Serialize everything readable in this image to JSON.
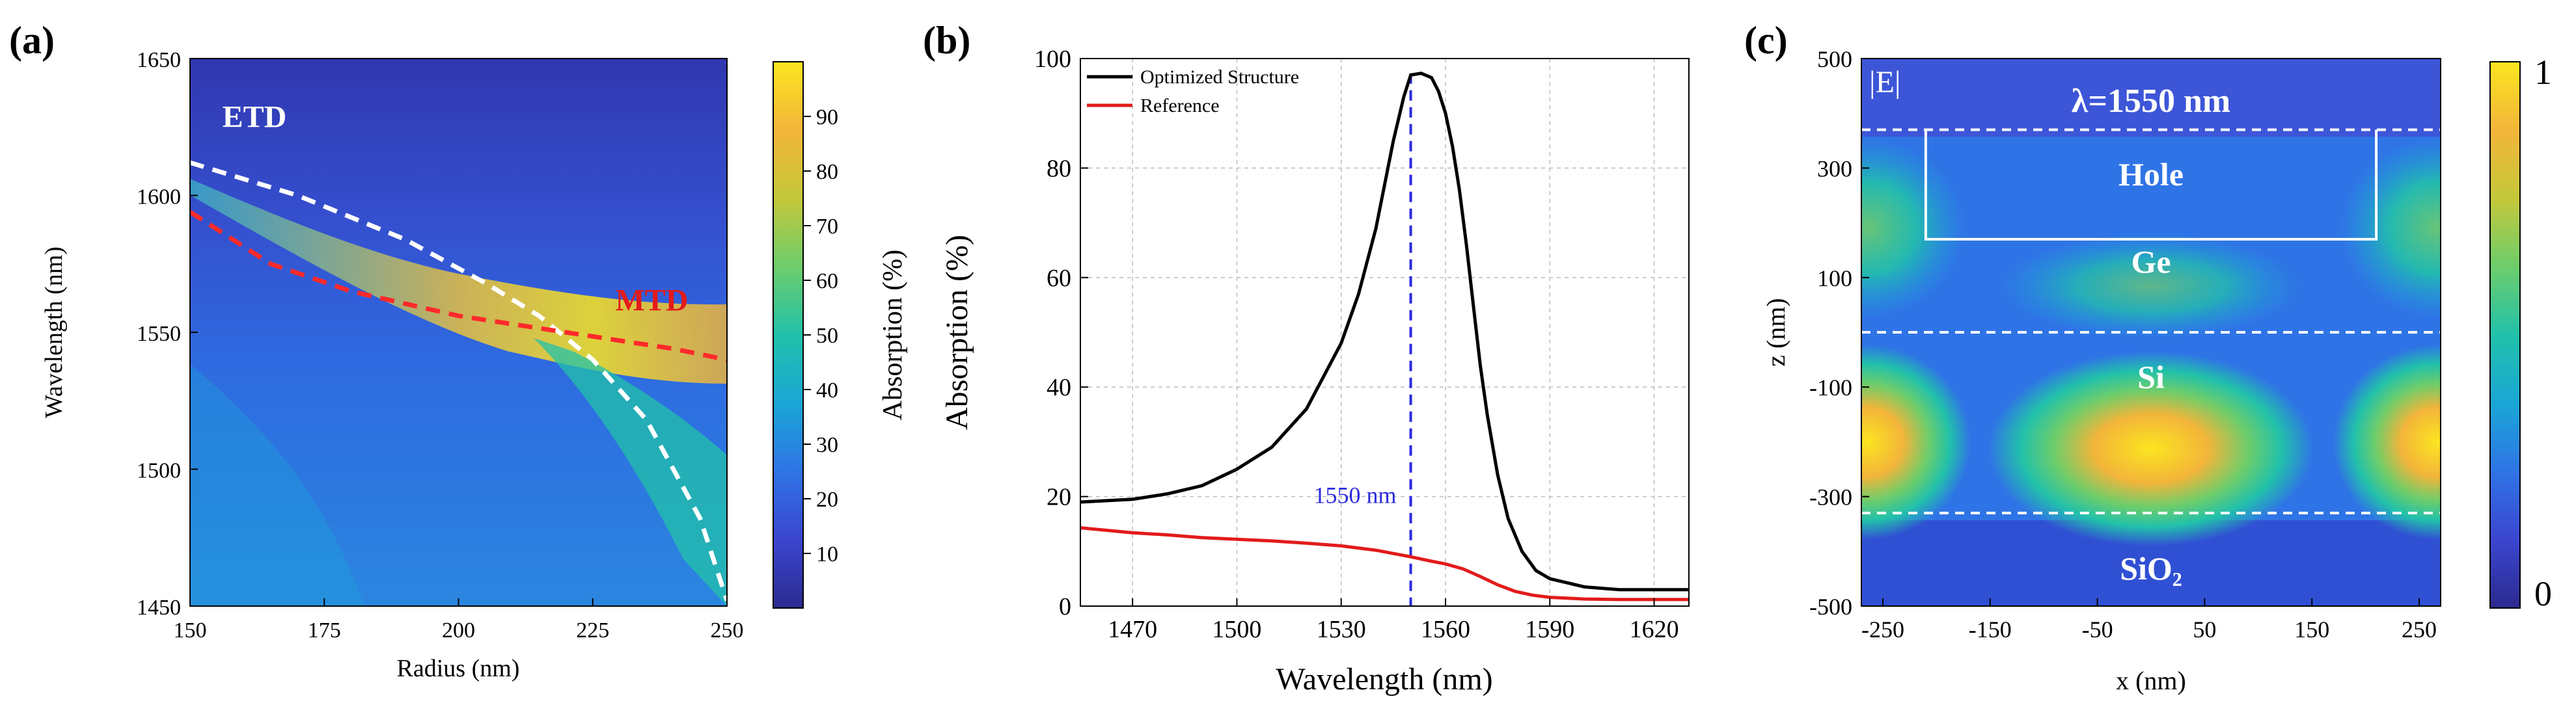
{
  "colors": {
    "cmap": [
      "#2c2a8f",
      "#3b46cf",
      "#2f74e6",
      "#1aa6d6",
      "#22c1aa",
      "#6dcd6b",
      "#c4c83a",
      "#f3b53a",
      "#fbe51f"
    ],
    "dashed_white": "#ffffff",
    "dashed_red": "#ff2a2a",
    "optimized_line": "#000000",
    "reference_line": "#e21b1b",
    "marker_line": "#2a2ae0",
    "etd_label": "#ffffff",
    "mtd_label": "#e21b1b"
  },
  "chart_data": [
    {
      "panel": "(a)",
      "type": "heatmap",
      "xlabel": "Radius (nm)",
      "ylabel": "Wavelength (nm)",
      "xlim": [
        150,
        250
      ],
      "ylim": [
        1450,
        1650
      ],
      "xticks": [
        150,
        175,
        200,
        225,
        250
      ],
      "yticks": [
        1450,
        1500,
        1550,
        1600,
        1650
      ],
      "colorbar": {
        "label": "Absorption (%)",
        "range": [
          0,
          100
        ],
        "ticks": [
          10,
          20,
          30,
          40,
          50,
          60,
          70,
          80,
          90
        ]
      },
      "curves": [
        {
          "name": "ETD",
          "style": "dashed-white",
          "x": [
            150,
            170,
            190,
            205,
            215,
            225,
            235,
            245,
            250
          ],
          "y": [
            1612,
            1600,
            1584,
            1568,
            1556,
            1540,
            1518,
            1482,
            1452
          ]
        },
        {
          "name": "MTD",
          "style": "dashed-red",
          "x": [
            150,
            165,
            180,
            200,
            220,
            240,
            250
          ],
          "y": [
            1594,
            1575,
            1565,
            1556,
            1550,
            1544,
            1540
          ]
        }
      ],
      "annotations": [
        {
          "text": "ETD",
          "x": 162,
          "y": 1625
        },
        {
          "text": "MTD",
          "x": 236,
          "y": 1558
        }
      ]
    },
    {
      "panel": "(b)",
      "type": "line",
      "xlabel": "Wavelength (nm)",
      "ylabel": "Absorption (%)",
      "xlim": [
        1455,
        1630
      ],
      "ylim": [
        0,
        100
      ],
      "xticks": [
        1470,
        1500,
        1530,
        1560,
        1590,
        1620
      ],
      "yticks": [
        0,
        20,
        40,
        60,
        80,
        100
      ],
      "grid": true,
      "legend": "top-left",
      "series": [
        {
          "name": "Optimized Structure",
          "x": [
            1455,
            1470,
            1480,
            1490,
            1500,
            1510,
            1520,
            1530,
            1535,
            1540,
            1545,
            1548,
            1550,
            1553,
            1556,
            1558,
            1560,
            1562,
            1564,
            1566,
            1568,
            1570,
            1572,
            1575,
            1578,
            1582,
            1586,
            1590,
            1600,
            1610,
            1620,
            1630
          ],
          "y": [
            19,
            19.5,
            20.5,
            22,
            25,
            29,
            36,
            48,
            57,
            69,
            85,
            93,
            97,
            97.3,
            96.5,
            94,
            90,
            84,
            76,
            66,
            55,
            44,
            35,
            24,
            16,
            10,
            6.5,
            5,
            3.5,
            3,
            3,
            3
          ]
        },
        {
          "name": "Reference",
          "x": [
            1455,
            1470,
            1480,
            1490,
            1500,
            1510,
            1520,
            1530,
            1540,
            1550,
            1556,
            1560,
            1565,
            1570,
            1575,
            1580,
            1585,
            1590,
            1600,
            1610,
            1620,
            1630
          ],
          "y": [
            14.3,
            13.4,
            13,
            12.5,
            12.2,
            11.9,
            11.5,
            11,
            10.2,
            9,
            8.2,
            7.7,
            6.8,
            5.4,
            3.9,
            2.7,
            2.0,
            1.6,
            1.3,
            1.2,
            1.2,
            1.2
          ]
        }
      ],
      "annotations": [
        {
          "text": "1550 nm",
          "x": 1550,
          "y": 20
        }
      ]
    },
    {
      "panel": "(c)",
      "type": "heatmap",
      "xlabel": "x (nm)",
      "ylabel": "z (nm)",
      "xlim": [
        -270,
        270
      ],
      "ylim": [
        -500,
        500
      ],
      "xticks": [
        -250,
        -150,
        -50,
        50,
        150,
        250
      ],
      "yticks": [
        -500,
        -300,
        -100,
        100,
        300,
        500
      ],
      "colorbar": {
        "label": "",
        "range": [
          0,
          1
        ],
        "ticks": [
          0,
          1
        ]
      },
      "title": "λ=1550 nm",
      "corner_label": "|E|",
      "interfaces_z": [
        370,
        0,
        -330
      ],
      "hole": {
        "x_range": [
          -210,
          210
        ],
        "z_range": [
          170,
          370
        ]
      },
      "regions": [
        {
          "text": "Hole",
          "x": 0,
          "z": 290
        },
        {
          "text": "Ge",
          "x": 0,
          "z": 130
        },
        {
          "text": "Si",
          "x": 0,
          "z": -80
        },
        {
          "text": "SiO₂",
          "x": 0,
          "z": -430
        }
      ]
    }
  ]
}
